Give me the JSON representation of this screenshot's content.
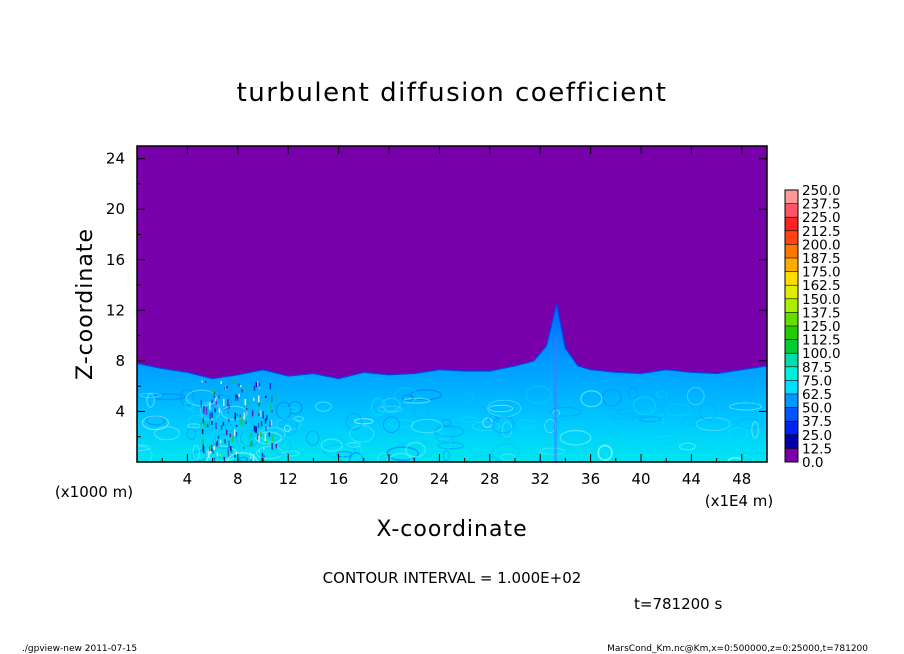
{
  "chart_data": {
    "type": "heatmap",
    "title": "turbulent diffusion coefficient",
    "xlabel": "X-coordinate",
    "ylabel": "Z-coordinate",
    "x_units_label": "(x1E4 m)",
    "y_units_label": "(x1000 m)",
    "x_ticks": [
      "4",
      "8",
      "12",
      "16",
      "20",
      "24",
      "28",
      "32",
      "36",
      "40",
      "44",
      "48"
    ],
    "y_ticks": [
      "4",
      "8",
      "12",
      "16",
      "20",
      "24"
    ],
    "xlim": [
      0,
      50
    ],
    "ylim": [
      0,
      25
    ],
    "colorbar": {
      "labels": [
        "250.0",
        "237.5",
        "225.0",
        "212.5",
        "200.0",
        "187.5",
        "175.0",
        "162.5",
        "150.0",
        "137.5",
        "125.0",
        "112.5",
        "100.0",
        "87.5",
        "75.0",
        "62.5",
        "50.0",
        "37.5",
        "25.0",
        "12.5",
        "0.0"
      ],
      "colors": [
        "#ff9999",
        "#ff5566",
        "#ff2222",
        "#ff4411",
        "#ff7700",
        "#ffaa00",
        "#ffdd00",
        "#ddee00",
        "#aaee00",
        "#66dd00",
        "#22cc00",
        "#00cc33",
        "#00ddaa",
        "#00eedd",
        "#00ddff",
        "#0099ff",
        "#0055ff",
        "#0022ee",
        "#0000aa",
        "#7700aa"
      ]
    },
    "background_value_color": "#7700aa",
    "mixed_layer_top": [
      [
        0,
        7.8
      ],
      [
        2,
        7.4
      ],
      [
        4,
        7.1
      ],
      [
        6,
        6.6
      ],
      [
        8,
        6.9
      ],
      [
        10,
        7.3
      ],
      [
        12,
        6.8
      ],
      [
        14,
        7.0
      ],
      [
        16,
        6.6
      ],
      [
        18,
        7.1
      ],
      [
        20,
        6.9
      ],
      [
        22,
        7.0
      ],
      [
        24,
        7.3
      ],
      [
        26,
        7.2
      ],
      [
        28,
        7.2
      ],
      [
        30,
        7.6
      ],
      [
        31.5,
        8.0
      ],
      [
        32.5,
        9.2
      ],
      [
        33.3,
        12.5
      ],
      [
        34,
        9.0
      ],
      [
        35,
        7.6
      ],
      [
        36,
        7.3
      ],
      [
        38,
        7.1
      ],
      [
        40,
        7.0
      ],
      [
        42,
        7.3
      ],
      [
        44,
        7.1
      ],
      [
        46,
        7.0
      ],
      [
        48,
        7.3
      ],
      [
        50,
        7.6
      ]
    ],
    "annotations": {
      "contour_interval": "CONTOUR INTERVAL = 1.000E+02",
      "time": "t=781200 s",
      "footer_left": "./gpview-new  2011-07-15",
      "footer_right": "MarsCond_Km.nc@Km,x=0:500000,z=0:25000,t=781200"
    }
  }
}
